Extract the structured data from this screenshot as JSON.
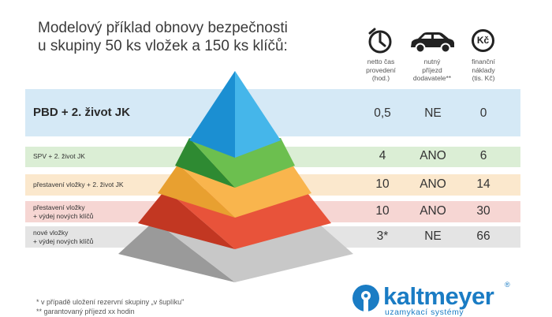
{
  "title": {
    "line1": "Modelový příklad obnovy bezpečnosti",
    "line2": "u skupiny 50 ks vložek a 150 ks klíčů:"
  },
  "columns": [
    {
      "icon": "clock-icon",
      "label": "netto čas\nprovedení\n(hod.)"
    },
    {
      "icon": "car-icon",
      "label": "nutný\npříjezd\ndodavatele**"
    },
    {
      "icon": "kc-icon",
      "icon_text": "Kč",
      "label": "finanční\nnáklady\n(tis. Kč)"
    }
  ],
  "rows": [
    {
      "label": "PBD + 2. život JK",
      "time": "0,5",
      "arrival": "NE",
      "cost": "0",
      "band_color": "#d5e9f6",
      "pyramid_color": "#1a9ad6"
    },
    {
      "label": "SPV + 2. život JK",
      "time": "4",
      "arrival": "ANO",
      "cost": "6",
      "band_color": "#dbeed5",
      "pyramid_color": "#3e9a3a"
    },
    {
      "label": "přestavení vložky + 2. život JK",
      "time": "10",
      "arrival": "ANO",
      "cost": "14",
      "band_color": "#fbe8cd",
      "pyramid_color": "#f39a1d"
    },
    {
      "label": "přestavení vložky\n+ výdej nových klíčů",
      "time": "10",
      "arrival": "ANO",
      "cost": "30",
      "band_color": "#f6d6d3",
      "pyramid_color": "#e0412c"
    },
    {
      "label": "nové vložky\n+ výdej nových klíčů",
      "time": "3*",
      "arrival": "NE",
      "cost": "66",
      "band_color": "#e4e4e4",
      "pyramid_color": "#a3a3a3"
    }
  ],
  "footnotes": [
    "* v případě uložení rezervní skupiny „v šuplíku\"",
    "** garantovaný příjezd xx hodin"
  ],
  "logo": {
    "name": "kaltmeyer",
    "tagline": "uzamykací systémy",
    "registered": "®",
    "color": "#1a7cc4"
  }
}
